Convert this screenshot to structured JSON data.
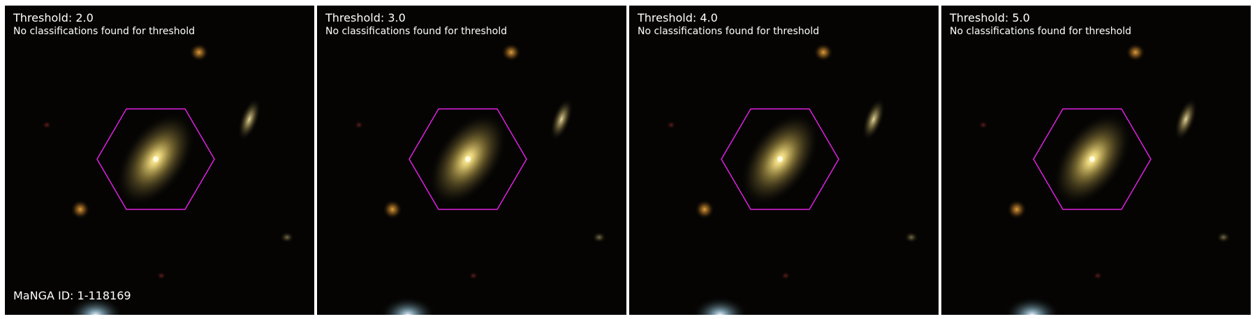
{
  "panels": [
    {
      "title": "Threshold: 2.0",
      "message": "No classifications found for threshold"
    },
    {
      "title": "Threshold: 3.0",
      "message": "No classifications found for threshold"
    },
    {
      "title": "Threshold: 4.0",
      "message": "No classifications found for threshold"
    },
    {
      "title": "Threshold: 5.0",
      "message": "No classifications found for threshold"
    }
  ],
  "manga_id": "MaNGA ID: 1-118169",
  "colors": {
    "background": "#050403",
    "hexagon_outline": "#e020e0",
    "galaxy_core": "#fff6c0",
    "galaxy_halo": "#8c7a3a",
    "star_orange": "#c88a2a",
    "star_yellow": "#c4a040"
  }
}
